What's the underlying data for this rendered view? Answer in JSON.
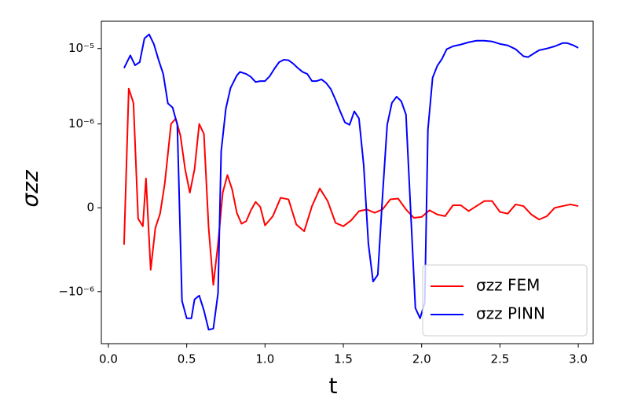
{
  "chart_data": {
    "type": "line",
    "xlabel": "t",
    "ylabel": "σzz",
    "yscale": "symlog",
    "linthresh": 1e-06,
    "xlim": [
      -0.045,
      3.095
    ],
    "ylim": [
      -4.9e-06,
      2.3e-05
    ],
    "xticks": [
      {
        "value": 0,
        "label": "0.0"
      },
      {
        "value": 0.5,
        "label": "0.5"
      },
      {
        "value": 1,
        "label": "1.0"
      },
      {
        "value": 1.5,
        "label": "1.5"
      },
      {
        "value": 2,
        "label": "2.0"
      },
      {
        "value": 2.5,
        "label": "2.5"
      },
      {
        "value": 3,
        "label": "3.0"
      }
    ],
    "yticks": [
      {
        "value": -1e-06,
        "label": "−10⁻⁶"
      },
      0,
      {
        "value": 1e-06,
        "label": "10⁻⁶"
      },
      {
        "value": 1e-05,
        "label": "10⁻⁵"
      }
    ],
    "legend": "lower right",
    "series": [
      {
        "name": "σzz FEM",
        "color": "#ff0000",
        "x": [
          0.1,
          0.13,
          0.16,
          0.19,
          0.22,
          0.24,
          0.27,
          0.3,
          0.33,
          0.36,
          0.4,
          0.43,
          0.46,
          0.49,
          0.52,
          0.55,
          0.58,
          0.61,
          0.64,
          0.67,
          0.7,
          0.73,
          0.76,
          0.79,
          0.82,
          0.85,
          0.88,
          0.91,
          0.94,
          0.97,
          1.0,
          1.05,
          1.1,
          1.15,
          1.2,
          1.25,
          1.3,
          1.35,
          1.4,
          1.45,
          1.5,
          1.55,
          1.6,
          1.65,
          1.7,
          1.75,
          1.8,
          1.85,
          1.9,
          1.95,
          2.0,
          2.05,
          2.1,
          2.15,
          2.2,
          2.25,
          2.3,
          2.35,
          2.4,
          2.45,
          2.5,
          2.55,
          2.6,
          2.65,
          2.7,
          2.75,
          2.8,
          2.85,
          2.9,
          2.95,
          3.0
        ],
        "values": [
          -4.4e-07,
          2.94e-06,
          1.9e-06,
          -1.3e-07,
          -2.2e-07,
          3.5e-07,
          -7.4e-07,
          -2.4e-07,
          -7e-08,
          2.9e-07,
          1e-06,
          1.18e-06,
          8.6e-07,
          4.6e-07,
          1.8e-07,
          4.6e-07,
          1e-06,
          8.8e-07,
          -2.4e-07,
          -9.2e-07,
          -4.3e-07,
          1.8e-07,
          3.9e-07,
          2.2e-07,
          -6e-08,
          -1.9e-07,
          -1.6e-07,
          -3e-08,
          7e-08,
          1e-08,
          -2.1e-07,
          -1e-07,
          1.2e-07,
          1e-07,
          -2e-07,
          -2.8e-07,
          2e-08,
          2.3e-07,
          8e-08,
          -1.8e-07,
          -2.2e-07,
          -1.5e-07,
          -4e-08,
          -2e-08,
          -6e-08,
          -2e-08,
          1e-07,
          1.1e-07,
          -2e-08,
          -1.2e-07,
          -1.1e-07,
          -3e-08,
          -8e-08,
          -1e-07,
          3e-08,
          3e-08,
          -4e-08,
          2e-08,
          8e-08,
          8e-08,
          -5e-08,
          -7e-08,
          4e-08,
          2e-08,
          -8e-08,
          -1.4e-07,
          -1e-07,
          0.0,
          2e-08,
          4e-08,
          2e-08
        ]
      },
      {
        "name": "σzz PINN",
        "color": "#0000ff",
        "x": [
          0.1,
          0.14,
          0.17,
          0.2,
          0.23,
          0.26,
          0.29,
          0.32,
          0.35,
          0.38,
          0.41,
          0.44,
          0.47,
          0.5,
          0.53,
          0.55,
          0.58,
          0.61,
          0.64,
          0.67,
          0.7,
          0.72,
          0.75,
          0.78,
          0.82,
          0.84,
          0.88,
          0.91,
          0.94,
          0.97,
          1.0,
          1.03,
          1.06,
          1.09,
          1.12,
          1.15,
          1.18,
          1.21,
          1.24,
          1.27,
          1.3,
          1.33,
          1.36,
          1.39,
          1.42,
          1.45,
          1.48,
          1.51,
          1.54,
          1.57,
          1.6,
          1.63,
          1.66,
          1.69,
          1.72,
          1.75,
          1.78,
          1.81,
          1.84,
          1.87,
          1.9,
          1.93,
          1.96,
          1.99,
          2.02,
          2.04,
          2.07,
          2.1,
          2.13,
          2.16,
          2.2,
          2.25,
          2.3,
          2.35,
          2.4,
          2.45,
          2.5,
          2.55,
          2.6,
          2.65,
          2.68,
          2.72,
          2.75,
          2.8,
          2.85,
          2.9,
          2.93,
          2.97,
          3.0
        ],
        "values": [
          5.5e-06,
          8.1e-06,
          6e-06,
          6.6e-06,
          1.36e-05,
          1.54e-05,
          1.15e-05,
          7.1e-06,
          4.6e-06,
          1.87e-06,
          1.65e-06,
          9.9e-07,
          -1.33e-06,
          -2.26e-06,
          -2.26e-06,
          -1.27e-06,
          -1.13e-06,
          -1.78e-06,
          -3.2e-06,
          -3.1e-06,
          -1.05e-06,
          6.7e-07,
          1.6e-06,
          3e-06,
          4.4e-06,
          4.9e-06,
          4.6e-06,
          4.2e-06,
          3.6e-06,
          3.7e-06,
          3.7e-06,
          4.3e-06,
          5.4e-06,
          6.6e-06,
          7.1e-06,
          7e-06,
          6.3e-06,
          5.5e-06,
          4.9e-06,
          4.6e-06,
          3.7e-06,
          3.7e-06,
          3.9e-06,
          3.5e-06,
          2.9e-06,
          2.1e-06,
          1.47e-06,
          1.05e-06,
          9.9e-07,
          1.47e-06,
          1.18e-06,
          5.1e-07,
          -4.3e-07,
          -8.8e-07,
          -8e-07,
          1.3e-07,
          9.9e-07,
          1.9e-06,
          2.3e-06,
          2e-06,
          1.33e-06,
          -4e-08,
          -1.65e-06,
          -2.26e-06,
          -1.4e-06,
          9.3e-07,
          4.1e-06,
          5.9e-06,
          7.3e-06,
          9.8e-06,
          1.07e-05,
          1.13e-05,
          1.21e-05,
          1.27e-05,
          1.27e-05,
          1.24e-05,
          1.15e-05,
          1.1e-05,
          9.8e-06,
          7.9e-06,
          7.7e-06,
          8.7e-06,
          9.5e-06,
          1e-05,
          1.07e-05,
          1.18e-05,
          1.18e-05,
          1.1e-05,
          1.02e-05
        ]
      }
    ]
  }
}
